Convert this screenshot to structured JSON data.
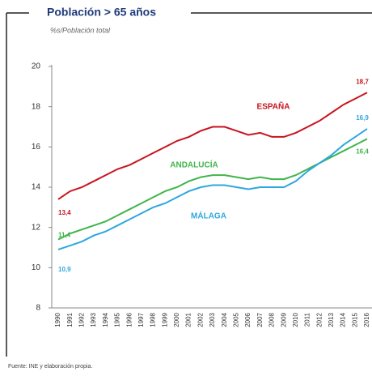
{
  "chart_data": {
    "type": "line",
    "title": "Población > 65 años",
    "subtitle": "%s/Población total",
    "source": "Fuente: INE y elaboración propia.",
    "categories": [
      "1990",
      "1991",
      "1992",
      "1993",
      "1994",
      "1995",
      "1996",
      "1997",
      "1998",
      "1999",
      "2000",
      "2001",
      "2002",
      "2003",
      "2004",
      "2005",
      "2006",
      "2007",
      "2008",
      "2009",
      "2010",
      "2011",
      "2012",
      "2013",
      "2014",
      "2015",
      "2016"
    ],
    "ylim": [
      8,
      20
    ],
    "yticks": [
      8,
      10,
      12,
      14,
      16,
      18,
      20
    ],
    "series": [
      {
        "name": "ESPAÑA",
        "color": "#c8141e",
        "values": [
          13.4,
          13.8,
          14.0,
          14.3,
          14.6,
          14.9,
          15.1,
          15.4,
          15.7,
          16.0,
          16.3,
          16.5,
          16.8,
          17.0,
          17.0,
          16.8,
          16.6,
          16.7,
          16.5,
          16.5,
          16.7,
          17.0,
          17.3,
          17.7,
          18.1,
          18.4,
          18.7
        ],
        "value_labels": [
          "13,4",
          null,
          null,
          null,
          null,
          null,
          null,
          null,
          null,
          null,
          null,
          null,
          null,
          null,
          null,
          null,
          null,
          null,
          null,
          null,
          null,
          null,
          null,
          null,
          null,
          null,
          "18,7"
        ]
      },
      {
        "name": "ANDALUCÍA",
        "color": "#3fb54a",
        "values": [
          11.4,
          11.7,
          11.9,
          12.1,
          12.3,
          12.6,
          12.9,
          13.2,
          13.5,
          13.8,
          14.0,
          14.3,
          14.5,
          14.6,
          14.6,
          14.5,
          14.4,
          14.5,
          14.4,
          14.4,
          14.6,
          14.9,
          15.2,
          15.5,
          15.8,
          16.1,
          16.4
        ],
        "value_labels": [
          "11,4",
          null,
          null,
          null,
          null,
          null,
          null,
          null,
          null,
          null,
          null,
          null,
          null,
          null,
          null,
          null,
          null,
          null,
          null,
          null,
          null,
          null,
          null,
          null,
          null,
          null,
          "16,4"
        ]
      },
      {
        "name": "MÁLAGA",
        "color": "#2ea7e0",
        "values": [
          10.9,
          11.1,
          11.3,
          11.6,
          11.8,
          12.1,
          12.4,
          12.7,
          13.0,
          13.2,
          13.5,
          13.8,
          14.0,
          14.1,
          14.1,
          14.0,
          13.9,
          14.0,
          14.0,
          14.0,
          14.3,
          14.8,
          15.2,
          15.6,
          16.1,
          16.5,
          16.9
        ],
        "value_labels": [
          "10,9",
          null,
          null,
          null,
          null,
          null,
          null,
          null,
          null,
          null,
          null,
          null,
          null,
          null,
          null,
          null,
          null,
          null,
          null,
          null,
          null,
          null,
          null,
          null,
          null,
          null,
          "16,9"
        ]
      }
    ]
  }
}
